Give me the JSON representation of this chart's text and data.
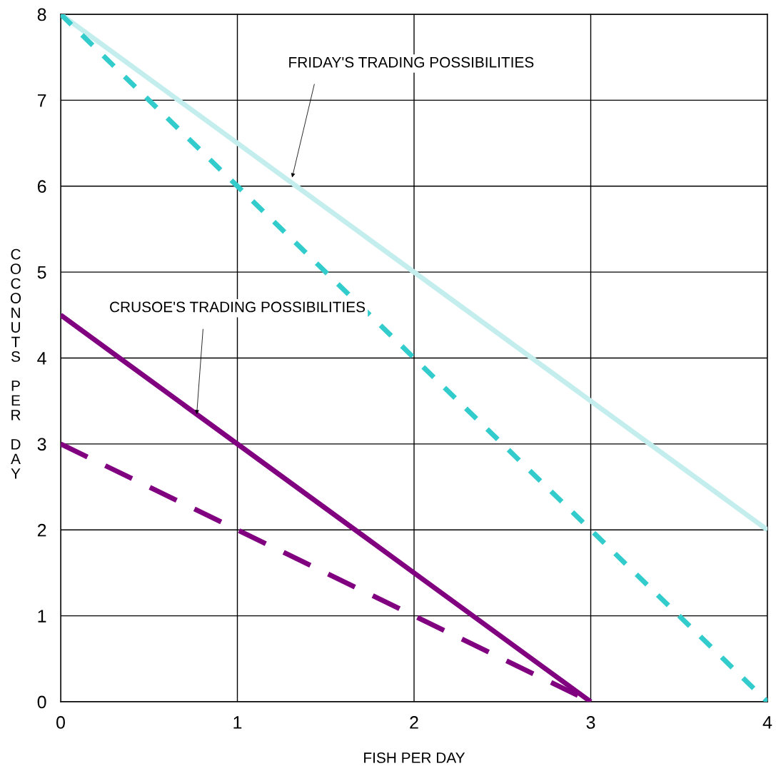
{
  "chart_data": {
    "type": "line",
    "xlabel": "FISH PER DAY",
    "ylabel": "COCONUTS PER DAY",
    "series": [
      {
        "x": [
          0,
          1,
          2,
          3,
          4
        ],
        "values": [
          8,
          6.5,
          5,
          3.5,
          2
        ],
        "color": "#c4eeee",
        "line_style": "solid"
      },
      {
        "x": [
          0,
          1,
          2,
          3,
          4
        ],
        "values": [
          8,
          6,
          4,
          2,
          0
        ],
        "color": "#33cccc",
        "line_style": "dashed"
      },
      {
        "x": [
          0,
          1,
          2,
          3
        ],
        "values": [
          4.5,
          3,
          1.5,
          0
        ],
        "color": "#800080",
        "line_style": "solid"
      },
      {
        "x": [
          0,
          1,
          2,
          3
        ],
        "values": [
          3,
          2,
          1,
          0
        ],
        "color": "#800080",
        "line_style": "dashed"
      }
    ],
    "annotations": [
      {
        "text": "FRIDAY'S TRADING POSSIBILITIES",
        "x": 1.31,
        "y": 6.1
      },
      {
        "text": "CRUSOE'S TRADING POSSIBILITIES",
        "x": 0.77,
        "y": 3.345
      }
    ],
    "xlim": [
      0,
      4
    ],
    "xticks": [
      0,
      1,
      2,
      3,
      4
    ],
    "ylim": [
      0,
      8
    ],
    "yticks": [
      0,
      1,
      2,
      3,
      4,
      5,
      6,
      7,
      8
    ],
    "grid": true,
    "legend": false,
    "marker": "none"
  }
}
